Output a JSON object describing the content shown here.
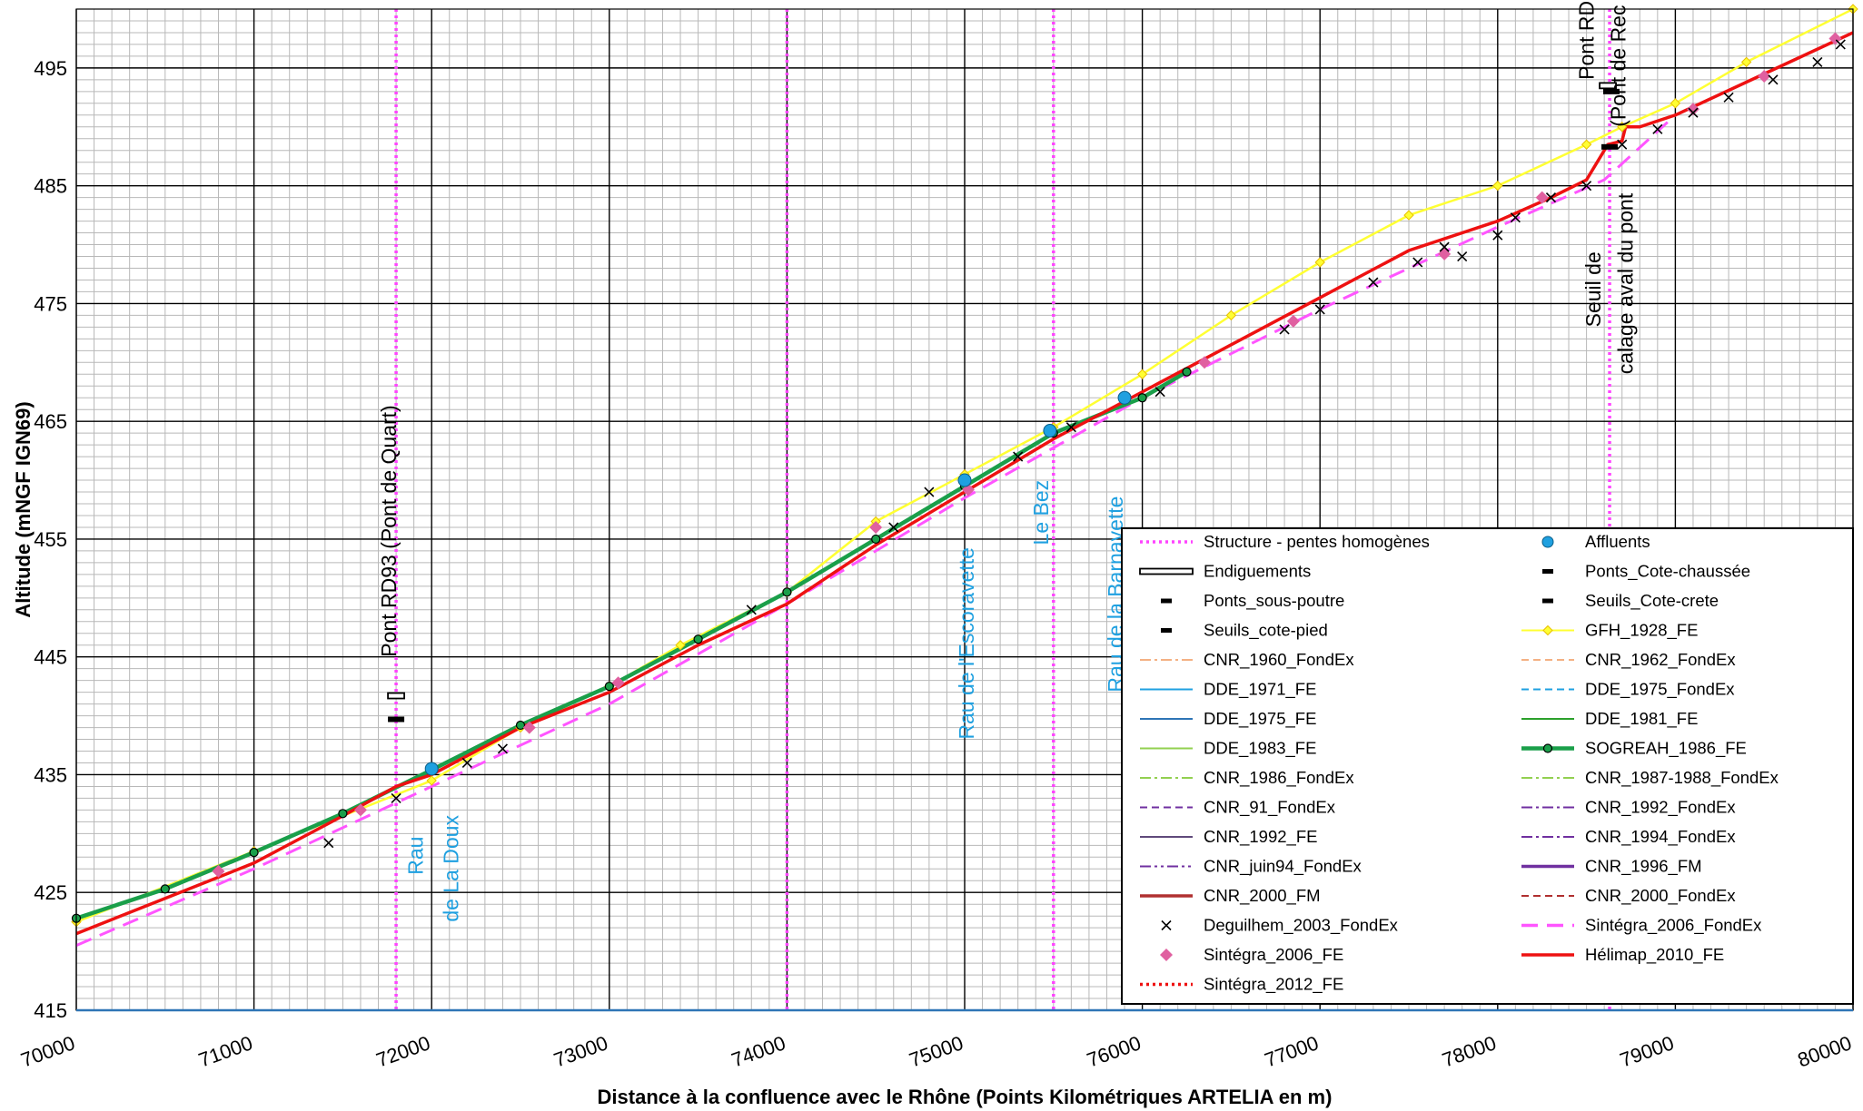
{
  "chart_data": {
    "type": "line",
    "xlabel": "Distance à la confluence avec le Rhône (Points Kilométriques ARTELIA en m)",
    "ylabel": "Altitude (mNGF IGN69)",
    "xlim": [
      70000,
      80000
    ],
    "ylim": [
      415,
      500
    ],
    "x_ticks": [
      70000,
      71000,
      72000,
      73000,
      74000,
      75000,
      76000,
      77000,
      78000,
      79000,
      80000
    ],
    "y_ticks": [
      415,
      425,
      435,
      445,
      455,
      465,
      475,
      485,
      495
    ],
    "grid": true,
    "legend_position": "bottom-right",
    "structures_x": [
      71800,
      74000,
      75500,
      78630
    ],
    "series": [
      {
        "name": "Structure - pentes homogènes",
        "color": "#ff44ff",
        "style": "dotted-vertical"
      },
      {
        "name": "Affluents",
        "color": "#1fa0e0",
        "style": "marker",
        "x": [
          72000,
          75000,
          75480,
          75900
        ],
        "y": [
          435.5,
          460,
          464.2,
          467
        ]
      },
      {
        "name": "Endiguements",
        "color": "#000000",
        "style": "hollow-bar",
        "x": [
          71800,
          78620
        ],
        "y": [
          441.7,
          493.5
        ]
      },
      {
        "name": "Ponts_Cote-chaussée",
        "color": "#000000",
        "style": "dash",
        "x": [
          78640
        ],
        "y": [
          493
        ]
      },
      {
        "name": "Ponts_sous-poutre",
        "color": "#000000",
        "style": "dash",
        "x": [
          71800,
          78630
        ],
        "y": [
          439.7,
          488.3
        ]
      },
      {
        "name": "Seuils_Cote-crete",
        "color": "#000000",
        "style": "dash",
        "x": [],
        "y": []
      },
      {
        "name": "Seuils_cote-pied",
        "color": "#000000",
        "style": "dash",
        "x": [],
        "y": []
      },
      {
        "name": "GFH_1928_FE",
        "color": "#ffff33",
        "style": "line-marker",
        "x": [
          70000,
          71000,
          72000,
          72500,
          73000,
          73400,
          74000,
          74500,
          75000,
          75500,
          76000,
          76500,
          77000,
          77500,
          78000,
          78500,
          78700,
          79000,
          79400,
          80000
        ],
        "y": [
          422.5,
          428.5,
          434.5,
          439,
          442.5,
          446,
          450.5,
          456.5,
          460.5,
          464.5,
          469,
          474,
          478.5,
          482.5,
          485,
          488.5,
          490,
          492,
          495.5,
          500
        ]
      },
      {
        "name": "CNR_1960_FondEx",
        "color": "#f4b183",
        "style": "dash-dot"
      },
      {
        "name": "CNR_1962_FondEx",
        "color": "#f4b183",
        "style": "dashed"
      },
      {
        "name": "DDE_1971_FE",
        "color": "#1fa0e0",
        "style": "solid"
      },
      {
        "name": "DDE_1975_FondEx",
        "color": "#1fa0e0",
        "style": "dashed"
      },
      {
        "name": "DDE_1975_FE",
        "color": "#2e75b6",
        "style": "solid"
      },
      {
        "name": "DDE_1981_FE",
        "color": "#2ca02c",
        "style": "solid"
      },
      {
        "name": "DDE_1983_FE",
        "color": "#92d050",
        "style": "solid"
      },
      {
        "name": "SOGREAH_1986_FE",
        "color": "#1a9f4a",
        "style": "line-marker",
        "x": [
          70000,
          70500,
          71000,
          71500,
          72000,
          72500,
          73000,
          73500,
          74000,
          74500,
          75000,
          75500,
          76000,
          76250
        ],
        "y": [
          422.8,
          425.3,
          428.4,
          431.7,
          435.4,
          439.2,
          442.5,
          446.5,
          450.5,
          455,
          459.5,
          464,
          467,
          469.2
        ]
      },
      {
        "name": "CNR_1986_FondEx",
        "color": "#92d050",
        "style": "dash-dot"
      },
      {
        "name": "CNR_1987-1988_FondEx",
        "color": "#92d050",
        "style": "dash-dot"
      },
      {
        "name": "CNR_91_FondEx",
        "color": "#7030a0",
        "style": "dashed"
      },
      {
        "name": "CNR_1992_FondEx",
        "color": "#7030a0",
        "style": "dash-dot"
      },
      {
        "name": "CNR_1992_FE",
        "color": "#604a7b",
        "style": "solid"
      },
      {
        "name": "CNR_1994_FondEx",
        "color": "#7030a0",
        "style": "dash-dot"
      },
      {
        "name": "CNR_juin94_FondEx",
        "color": "#7030a0",
        "style": "dash-dot-dot"
      },
      {
        "name": "CNR_1996_FM",
        "color": "#7030a0",
        "style": "solid"
      },
      {
        "name": "CNR_2000_FM",
        "color": "#b03030",
        "style": "solid"
      },
      {
        "name": "CNR_2000_FondEx",
        "color": "#b03030",
        "style": "dashed"
      },
      {
        "name": "Deguilhem_2003_FondEx",
        "color": "#000000",
        "style": "x-marker",
        "x": [
          71420,
          71800,
          72200,
          72400,
          73800,
          74600,
          74800,
          75300,
          75600,
          76100,
          76800,
          77000,
          77300,
          77550,
          77700,
          77800,
          78000,
          78100,
          78300,
          78500,
          78700,
          78900,
          79100,
          79300,
          79550,
          79800,
          79930
        ],
        "y": [
          429.2,
          433,
          436,
          437.2,
          449,
          456,
          459,
          462,
          464.5,
          467.5,
          472.8,
          474.5,
          476.8,
          478.5,
          479.8,
          479,
          480.8,
          482.3,
          484,
          485,
          488.5,
          489.8,
          491.2,
          492.5,
          494,
          495.5,
          497
        ]
      },
      {
        "name": "Sintégra_2006_FondEx",
        "color": "#ff55ff",
        "style": "long-dash",
        "x": [
          70000,
          71000,
          72000,
          73000,
          74000,
          75000,
          76000,
          77000,
          78000,
          78600,
          79000,
          80000
        ],
        "y": [
          420.5,
          427,
          434,
          441,
          449.5,
          458.5,
          467,
          474.5,
          481.5,
          485.5,
          491,
          498
        ]
      },
      {
        "name": "Sintégra_2006_FE",
        "color": "#e060a0",
        "style": "marker",
        "x": [
          70800,
          71600,
          72550,
          73050,
          74500,
          75020,
          76350,
          76850,
          77700,
          78250,
          79100,
          79500,
          79900
        ],
        "y": [
          426.8,
          432,
          439,
          442.8,
          456,
          459.2,
          470,
          473.5,
          479.2,
          484,
          491.5,
          494.3,
          497.5
        ]
      },
      {
        "name": "Hélimap_2010_FE",
        "color": "#ee1111",
        "style": "solid",
        "x": [
          70000,
          70500,
          71000,
          71500,
          71800,
          72000,
          72500,
          73000,
          73500,
          74000,
          74500,
          75000,
          75500,
          76000,
          76500,
          77000,
          77500,
          78000,
          78300,
          78500,
          78620,
          78700,
          78720,
          78800,
          79000,
          79500,
          80000
        ],
        "y": [
          421.5,
          424.5,
          427.5,
          431.5,
          434,
          435,
          439,
          442,
          446,
          449.5,
          454.5,
          459,
          463.5,
          467.5,
          471.5,
          475.5,
          479.5,
          482,
          484,
          485.5,
          488.5,
          488.8,
          490,
          490,
          491,
          494.5,
          498
        ]
      },
      {
        "name": "Sintégra_2012_FE",
        "color": "#ee1111",
        "style": "dotted"
      }
    ],
    "annotations": [
      {
        "text": "Pont RD93 (Pont de Quart)",
        "x": 71800,
        "y": 445,
        "rotation": -90,
        "color": "#000000"
      },
      {
        "text": "Rau",
        "x": 71950,
        "y": 426.5,
        "rotation": -90,
        "color": "#1fa0e0"
      },
      {
        "text": "de La Doux",
        "x": 72150,
        "y": 422.5,
        "rotation": -90,
        "color": "#1fa0e0"
      },
      {
        "text": "Rau de l'Escoravette",
        "x": 75050,
        "y": 438,
        "rotation": -90,
        "color": "#1fa0e0"
      },
      {
        "text": "Le Bez",
        "x": 75470,
        "y": 454.5,
        "rotation": -90,
        "color": "#1fa0e0"
      },
      {
        "text": "Rau de la Barnavette",
        "x": 75890,
        "y": 442,
        "rotation": -90,
        "color": "#1fa0e0"
      },
      {
        "text": "Pont RD",
        "x": 78540,
        "y": 494,
        "rotation": -90,
        "color": "#000000"
      },
      {
        "text": "(Pont de Rec",
        "x": 78720,
        "y": 490,
        "rotation": -90,
        "color": "#000000"
      },
      {
        "text": "Seuil de",
        "x": 78580,
        "y": 473,
        "rotation": -90,
        "color": "#000000"
      },
      {
        "text": "calage aval du pont",
        "x": 78760,
        "y": 469,
        "rotation": -90,
        "color": "#000000"
      }
    ]
  }
}
